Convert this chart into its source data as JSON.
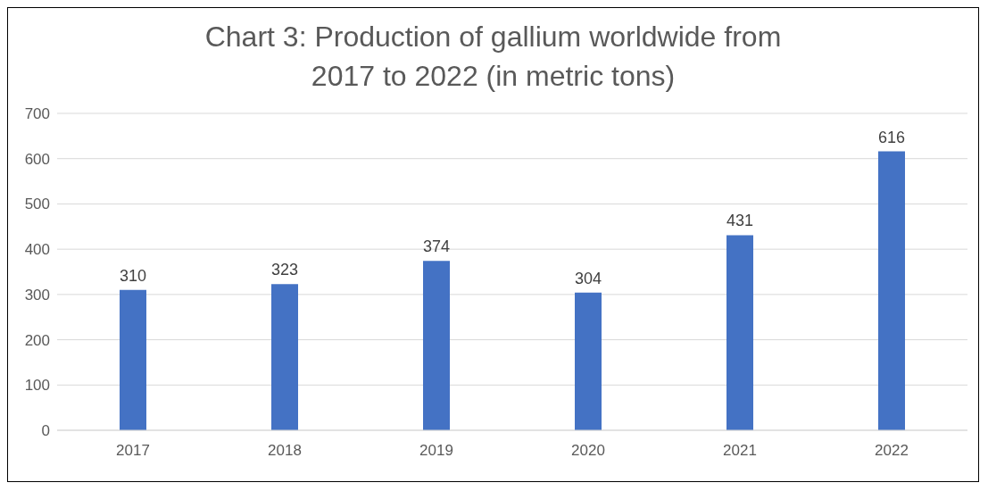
{
  "chart_data": {
    "type": "bar",
    "title": "Chart 3: Production of gallium worldwide from 2017 to 2022 (in metric tons)",
    "categories": [
      "2017",
      "2018",
      "2019",
      "2020",
      "2021",
      "2022"
    ],
    "values": [
      310,
      323,
      374,
      304,
      431,
      616
    ],
    "color": "#4472c4",
    "ylim": [
      0,
      700
    ],
    "yticks": [
      0,
      100,
      200,
      300,
      400,
      500,
      600,
      700
    ],
    "grid": "y",
    "data_labels": true
  }
}
